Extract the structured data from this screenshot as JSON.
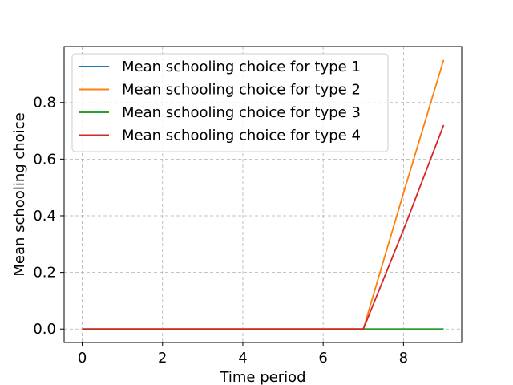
{
  "chart_data": {
    "type": "line",
    "title": "",
    "xlabel": "Time period",
    "ylabel": "Mean schooling choice",
    "x": [
      0,
      1,
      2,
      3,
      4,
      5,
      6,
      7,
      8,
      9
    ],
    "xlim": [
      -0.45,
      9.45
    ],
    "ylim": [
      -0.0475,
      0.9975
    ],
    "xticks": [
      0,
      2,
      4,
      6,
      8
    ],
    "xtick_labels": [
      "0",
      "2",
      "4",
      "6",
      "8"
    ],
    "yticks": [
      0.0,
      0.2,
      0.4,
      0.6,
      0.8
    ],
    "ytick_labels": [
      "0.0",
      "0.2",
      "0.4",
      "0.6",
      "0.8"
    ],
    "grid": true,
    "legend_position": "top-left",
    "series": [
      {
        "name": "Mean schooling choice for type 1",
        "color": "#1f77b4",
        "values": [
          0,
          0,
          0,
          0,
          0,
          0,
          0,
          0,
          0,
          0
        ]
      },
      {
        "name": "Mean schooling choice for type 2",
        "color": "#ff7f0e",
        "values": [
          0,
          0,
          0,
          0,
          0,
          0,
          0,
          0,
          0.48,
          0.95
        ]
      },
      {
        "name": "Mean schooling choice for type 3",
        "color": "#2ca02c",
        "values": [
          0,
          0,
          0,
          0,
          0,
          0,
          0,
          0,
          0,
          0
        ]
      },
      {
        "name": "Mean schooling choice for type 4",
        "color": "#d62728",
        "values": [
          0,
          0,
          0,
          0,
          0,
          0,
          0,
          0,
          0.35,
          0.72
        ]
      }
    ]
  }
}
